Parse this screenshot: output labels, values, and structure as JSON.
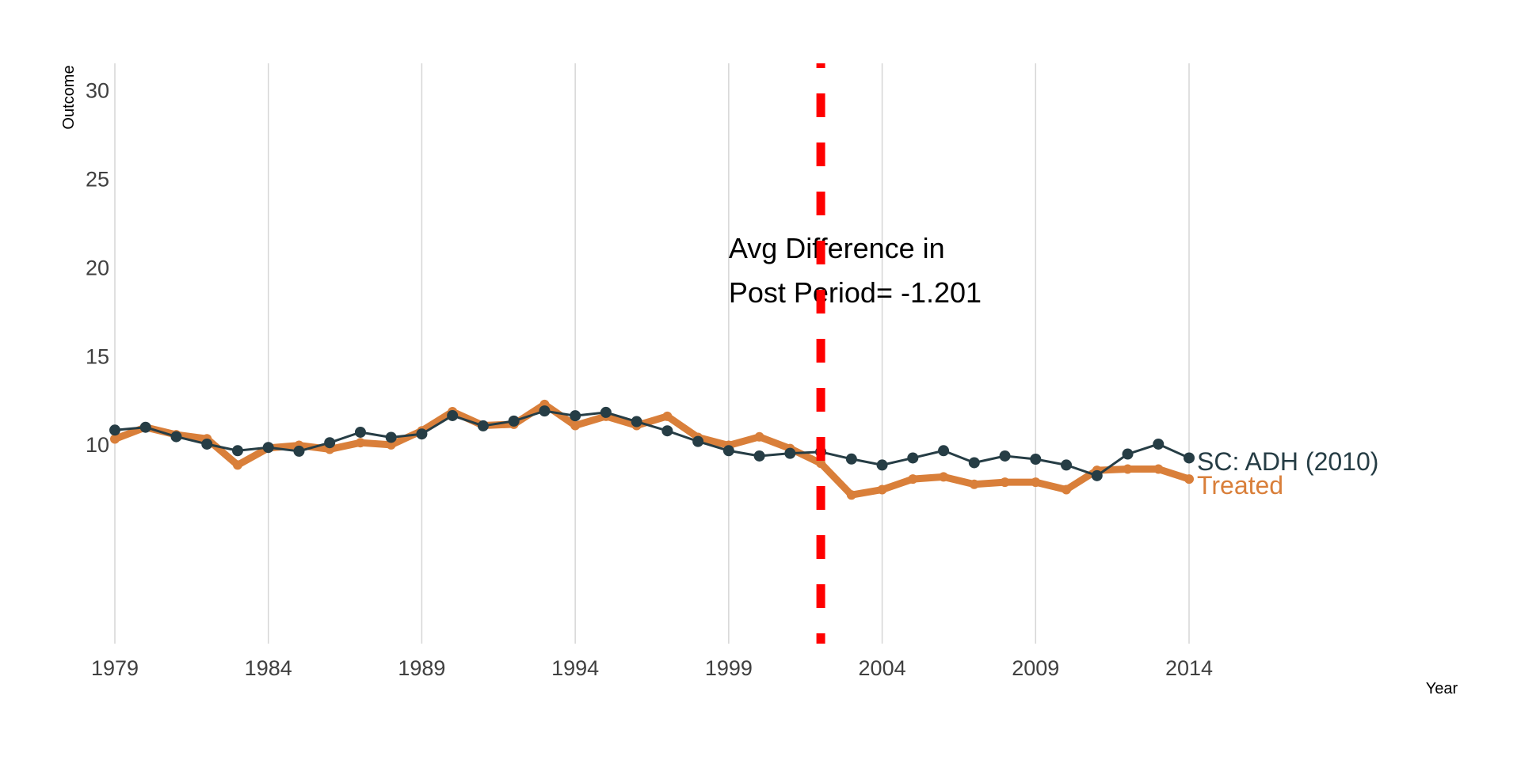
{
  "chart_data": {
    "type": "line",
    "title": "",
    "xlabel": "Year",
    "ylabel": "Outcome",
    "xlim": [
      1979,
      2014
    ],
    "ylim": [
      -1.25,
      31.5
    ],
    "x_ticks": [
      1979,
      1984,
      1989,
      1994,
      1999,
      2004,
      2009,
      2014
    ],
    "y_ticks": [
      10,
      15,
      20,
      25,
      30
    ],
    "grid": "vertical",
    "x": [
      1979,
      1980,
      1981,
      1982,
      1983,
      1984,
      1985,
      1986,
      1987,
      1988,
      1989,
      1990,
      1991,
      1992,
      1993,
      1994,
      1995,
      1996,
      1997,
      1998,
      1999,
      2000,
      2001,
      2002,
      2003,
      2004,
      2005,
      2006,
      2007,
      2008,
      2009,
      2010,
      2011,
      2012,
      2013,
      2014
    ],
    "series": [
      {
        "name": "SC: ADH (2010)",
        "color": "#263D45",
        "values": [
          10.8,
          10.96,
          10.43,
          10.01,
          9.64,
          9.82,
          9.61,
          10.09,
          10.68,
          10.39,
          10.58,
          11.62,
          11.04,
          11.31,
          11.88,
          11.61,
          11.8,
          11.28,
          10.76,
          10.16,
          9.64,
          9.34,
          9.49,
          9.57,
          9.17,
          8.83,
          9.23,
          9.64,
          8.96,
          9.34,
          9.16,
          8.83,
          8.23,
          9.45,
          10.01,
          9.23
        ]
      },
      {
        "name": "Treated",
        "color": "#D97F3A",
        "values": [
          10.3,
          10.96,
          10.54,
          10.31,
          8.83,
          9.79,
          9.94,
          9.72,
          10.09,
          9.97,
          10.76,
          11.84,
          11.06,
          11.13,
          12.25,
          11.06,
          11.58,
          11.06,
          11.58,
          10.39,
          9.94,
          10.42,
          9.76,
          8.93,
          7.14,
          7.44,
          8.04,
          8.16,
          7.74,
          7.86,
          7.86,
          7.44,
          8.53,
          8.6,
          8.6,
          8.04
        ]
      }
    ],
    "treatment_line": {
      "x": 2002,
      "color": "#FF0000",
      "style": "dashed"
    },
    "annotation": {
      "lines": [
        "Avg Difference in",
        "Post Period= -1.201"
      ],
      "x": 1999,
      "y_top": 20.5
    },
    "legend": "direct-labels-right"
  }
}
